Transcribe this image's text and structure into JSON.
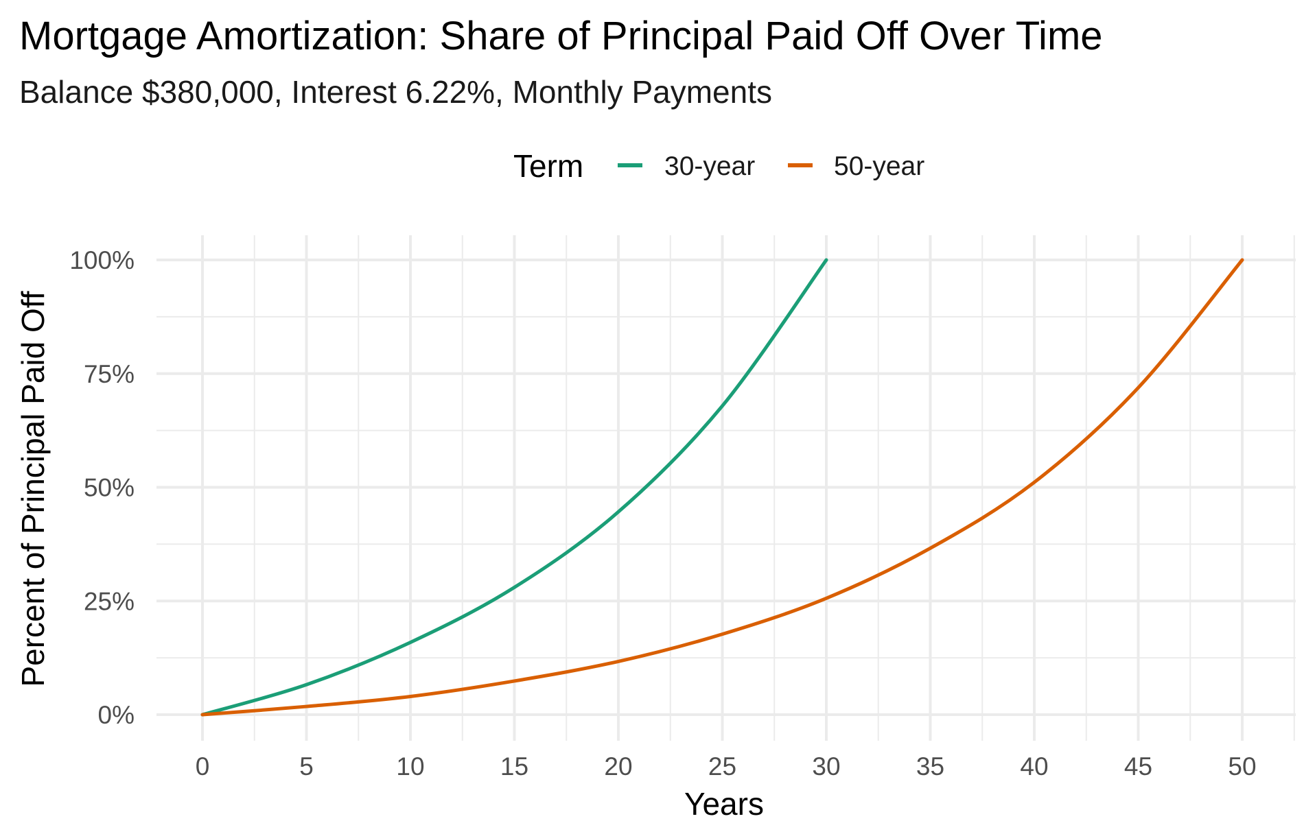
{
  "chart_data": {
    "type": "line",
    "title": "Mortgage Amortization: Share of Principal Paid Off Over Time",
    "subtitle": "Balance $380,000, Interest 6.22%, Monthly Payments",
    "xlabel": "Years",
    "ylabel": "Percent of Principal Paid Off",
    "xlim": [
      0,
      50
    ],
    "ylim": [
      0,
      100
    ],
    "x_ticks": [
      0,
      5,
      10,
      15,
      20,
      25,
      30,
      35,
      40,
      45,
      50
    ],
    "y_ticks": [
      0,
      25,
      50,
      75,
      100
    ],
    "y_tick_labels": [
      "0%",
      "25%",
      "50%",
      "75%",
      "100%"
    ],
    "grid": true,
    "legend": {
      "title": "Term",
      "position": "top"
    },
    "series": [
      {
        "name": "30-year",
        "color": "#1b9e77",
        "x": [
          0,
          5,
          10,
          15,
          20,
          25,
          30
        ],
        "y": [
          0,
          6.6,
          15.9,
          28.0,
          44.6,
          67.9,
          100
        ]
      },
      {
        "name": "50-year",
        "color": "#d95f02",
        "x": [
          0,
          5,
          10,
          15,
          20,
          25,
          30,
          35,
          40,
          45,
          50
        ],
        "y": [
          0,
          1.8,
          4.0,
          7.4,
          11.7,
          17.7,
          25.6,
          36.6,
          51.1,
          71.9,
          100
        ]
      }
    ]
  }
}
